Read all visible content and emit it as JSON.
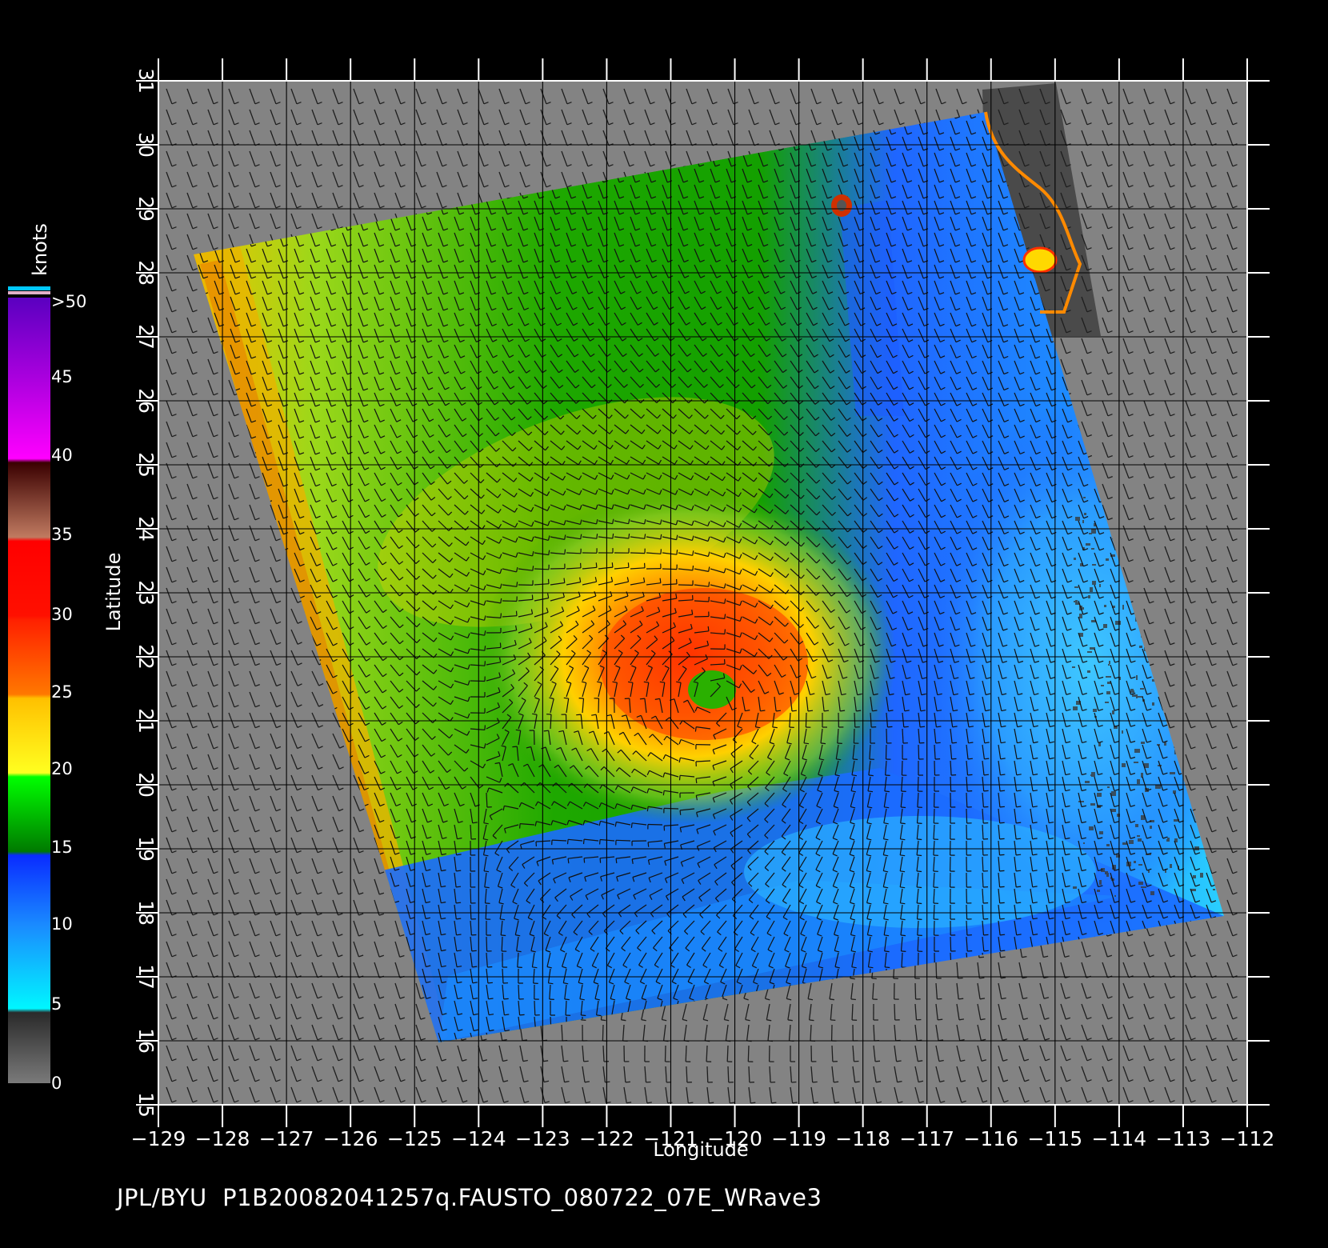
{
  "map": {
    "x_axis": {
      "title": "Longitude",
      "ticks": [
        "-129",
        "-128",
        "-127",
        "-126",
        "-125",
        "-124",
        "-123",
        "-122",
        "-121",
        "-120",
        "-119",
        "-118",
        "-117",
        "-116",
        "-115",
        "-114",
        "-113",
        "-112"
      ]
    },
    "y_axis": {
      "title": "Latitude",
      "ticks": [
        "15",
        "16",
        "17",
        "18",
        "19",
        "20",
        "21",
        "22",
        "23",
        "24",
        "25",
        "26",
        "27",
        "28",
        "29",
        "30",
        "31"
      ]
    },
    "colorbar": {
      "title": "knots",
      "labels": [
        "0",
        "5",
        "10",
        "15",
        "20",
        "25",
        "30",
        "35",
        "40",
        "45",
        ">50"
      ],
      "colors": {
        "calm": "#555555",
        "light": "#00e5ff",
        "moderate": "#1f5cff",
        "fresh": "#008f00",
        "strong": "#ffe800",
        "gale": "#ff8000",
        "storm": "#ff1500",
        "severe": "#a06a4a",
        "violent": "#ff00ff",
        "extreme": "#6a00c8"
      }
    },
    "storm_center": {
      "lon": -120.3,
      "lat": 21.3
    },
    "footer": "JPL/BYU  P1B20082041257q.FAUSTO_080722_07E_WRave3"
  }
}
